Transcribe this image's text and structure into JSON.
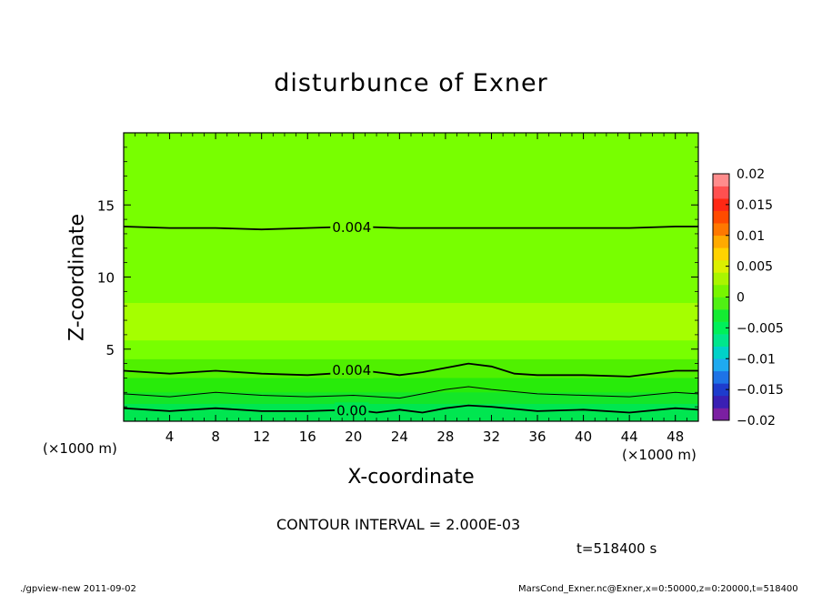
{
  "figure": {
    "title": "disturbunce of Exner",
    "xlabel": "X-coordinate",
    "ylabel": "Z-coordinate",
    "x_unit_left": "(×1000 m)",
    "x_unit_right": "(×1000 m)",
    "contour_interval": "CONTOUR INTERVAL = 2.000E-03",
    "time_label": "t=518400 s",
    "footer_left": "./gpview-new   2011-09-02",
    "footer_right": "MarsCond_Exner.nc@Exner,x=0:50000,z=0:20000,t=518400"
  },
  "chart_data": {
    "type": "contour",
    "title": "disturbunce of Exner",
    "xlabel": "X-coordinate",
    "ylabel": "Z-coordinate",
    "xlim": [
      0,
      50
    ],
    "ylim": [
      0,
      20
    ],
    "xticks": [
      4,
      8,
      12,
      16,
      20,
      24,
      28,
      32,
      36,
      40,
      44,
      48
    ],
    "xtick_labels": [
      "4",
      "8",
      "12",
      "16",
      "20",
      "24",
      "28",
      "32",
      "36",
      "40",
      "44",
      "48"
    ],
    "yticks": [
      5,
      10,
      15
    ],
    "ytick_labels": [
      "5",
      "10",
      "15"
    ],
    "colorbar": {
      "levels": [
        -0.02,
        -0.015,
        -0.01,
        -0.005,
        0,
        0.005,
        0.01,
        0.015,
        0.02
      ],
      "tick_labels": [
        "0.02",
        "0.015",
        "0.01",
        "0.005",
        "0",
        "−0.005",
        "−0.01",
        "−0.015",
        "−0.02"
      ],
      "colors": [
        "#7b1fa2",
        "#3a1fb4",
        "#1e3ccd",
        "#1e73e6",
        "#1eaaf0",
        "#00d2c8",
        "#00e68c",
        "#00f05a",
        "#14eb32",
        "#50f014",
        "#78f500",
        "#aaf500",
        "#dcf000",
        "#ffd200",
        "#ffaa00",
        "#ff7800",
        "#ff4b00",
        "#ff2814",
        "#ff5050",
        "#ff8c8c"
      ]
    },
    "bands": [
      {
        "z_top": 20,
        "color": "#78ff00"
      },
      {
        "z_top": 8.2,
        "color": "#a5ff00"
      },
      {
        "z_top": 5.6,
        "color": "#78ff00"
      },
      {
        "z_top": 4.3,
        "color": "#50f000"
      },
      {
        "z_top": 3.0,
        "color": "#28eb0a"
      },
      {
        "z_top": 2.0,
        "color": "#14e628"
      },
      {
        "z_top": 1.2,
        "color": "#00e650"
      }
    ],
    "contours": [
      {
        "level": 0.004,
        "label": "0.004",
        "x": [
          0,
          4,
          8,
          12,
          16,
          20,
          24,
          28,
          32,
          36,
          40,
          44,
          48,
          50
        ],
        "z": [
          13.5,
          13.4,
          13.4,
          13.3,
          13.4,
          13.5,
          13.4,
          13.4,
          13.4,
          13.4,
          13.4,
          13.4,
          13.5,
          13.5
        ]
      },
      {
        "level": 0.004,
        "label": "0.004",
        "x": [
          0,
          4,
          8,
          12,
          16,
          18,
          20,
          22,
          24,
          26,
          28,
          30,
          32,
          34,
          36,
          40,
          44,
          48,
          50
        ],
        "z": [
          3.5,
          3.3,
          3.5,
          3.3,
          3.2,
          3.3,
          3.6,
          3.4,
          3.2,
          3.4,
          3.7,
          4.0,
          3.8,
          3.3,
          3.2,
          3.2,
          3.1,
          3.5,
          3.5
        ]
      },
      {
        "level": 0.002,
        "label": "",
        "x": [
          0,
          4,
          8,
          12,
          16,
          20,
          24,
          26,
          28,
          30,
          32,
          36,
          40,
          44,
          48,
          50
        ],
        "z": [
          1.9,
          1.7,
          2.0,
          1.8,
          1.7,
          1.8,
          1.6,
          1.9,
          2.2,
          2.4,
          2.2,
          1.9,
          1.8,
          1.7,
          2.0,
          1.9
        ]
      },
      {
        "level": 0.0,
        "label": "0.00",
        "x": [
          0,
          4,
          8,
          12,
          16,
          20,
          22,
          24,
          26,
          28,
          30,
          32,
          36,
          40,
          44,
          48,
          50
        ],
        "z": [
          0.9,
          0.7,
          0.9,
          0.7,
          0.7,
          0.8,
          0.6,
          0.8,
          0.6,
          0.9,
          1.1,
          1.0,
          0.7,
          0.8,
          0.6,
          0.9,
          0.8
        ]
      }
    ]
  }
}
